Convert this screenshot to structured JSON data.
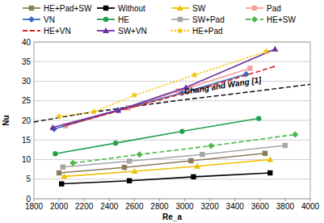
{
  "chart_data": {
    "type": "line",
    "x_label": "Re_a",
    "y_label": "Nu",
    "xlim": [
      1800,
      4000
    ],
    "xticks": [
      1800,
      2000,
      2200,
      2400,
      2600,
      2800,
      3000,
      3200,
      3400,
      3600,
      3800,
      4000
    ],
    "ylim": [
      0,
      40
    ],
    "yticks": [
      0,
      5,
      10,
      15,
      20,
      25,
      30,
      35,
      40
    ],
    "grid": true,
    "legend": "top",
    "series": [
      {
        "name": "HE+Pad+SW",
        "color": "#8b7d5a",
        "marker": "square",
        "line_style": "solid",
        "x": [
          2000,
          2520,
          3050,
          3640
        ],
        "values": [
          6.6,
          8.0,
          9.7,
          11.6
        ]
      },
      {
        "name": "Without",
        "color": "#000000",
        "marker": "square",
        "line_style": "solid",
        "x": [
          2020,
          2560,
          3070,
          3680
        ],
        "values": [
          3.8,
          4.6,
          5.6,
          6.6
        ]
      },
      {
        "name": "SW",
        "color": "#f0c000",
        "marker": "triangle",
        "line_style": "solid",
        "x": [
          2040,
          2600,
          3100,
          3680
        ],
        "values": [
          5.7,
          7.0,
          8.3,
          10.0
        ]
      },
      {
        "name": "Pad",
        "color": "#f4a0a0",
        "marker": "square",
        "line_style": "solid",
        "x": [
          2050,
          2550,
          2950,
          3520
        ],
        "values": [
          18.6,
          23.2,
          27.5,
          33.3
        ]
      },
      {
        "name": "VN",
        "color": "#3a6fc4",
        "marker": "diamond",
        "line_style": "solid",
        "x": [
          1960,
          2470,
          2980,
          3490
        ],
        "values": [
          17.8,
          22.6,
          27.0,
          31.8
        ]
      },
      {
        "name": "HE",
        "color": "#1fa04a",
        "marker": "circle",
        "line_style": "solid",
        "x": [
          1970,
          2450,
          2980,
          3590
        ],
        "values": [
          11.5,
          14.2,
          17.2,
          20.5
        ]
      },
      {
        "name": "SW+Pad",
        "color": "#a6a6a6",
        "marker": "square",
        "line_style": "solid",
        "x": [
          2030,
          2560,
          3140,
          3800
        ],
        "values": [
          8.1,
          9.6,
          11.3,
          13.6
        ]
      },
      {
        "name": "HE+SW",
        "color": "#4cb84c",
        "marker": "diamond",
        "line_style": "dashed",
        "x": [
          2110,
          2640,
          3210,
          3880
        ],
        "values": [
          9.1,
          11.3,
          13.5,
          16.4
        ]
      },
      {
        "name": "HE+VN",
        "color": "#e02020",
        "marker": "none",
        "line_style": "dashed",
        "x": [
          2060,
          2600,
          3180,
          3710
        ],
        "values": [
          18.8,
          23.5,
          28.5,
          33.7
        ]
      },
      {
        "name": "SW+VN",
        "color": "#7030a0",
        "marker": "triangle",
        "line_style": "solid",
        "x": [
          1950,
          2470,
          3010,
          3720
        ],
        "values": [
          18.2,
          22.6,
          28.4,
          38.2
        ]
      },
      {
        "name": "HE+Pad",
        "color": "#f5c000",
        "marker": "star",
        "line_style": "dotted",
        "x": [
          2000,
          2280,
          2600,
          3080,
          3650
        ],
        "values": [
          21.0,
          22.2,
          26.4,
          31.6,
          37.6
        ]
      }
    ],
    "correlation": {
      "name": "Chang and Wang [1]",
      "color": "#000000",
      "line_style": "dashed",
      "x": [
        1800,
        2200,
        2600,
        3000,
        3400,
        4000
      ],
      "values": [
        19.6,
        21.8,
        23.6,
        25.3,
        26.8,
        29.2
      ]
    }
  }
}
